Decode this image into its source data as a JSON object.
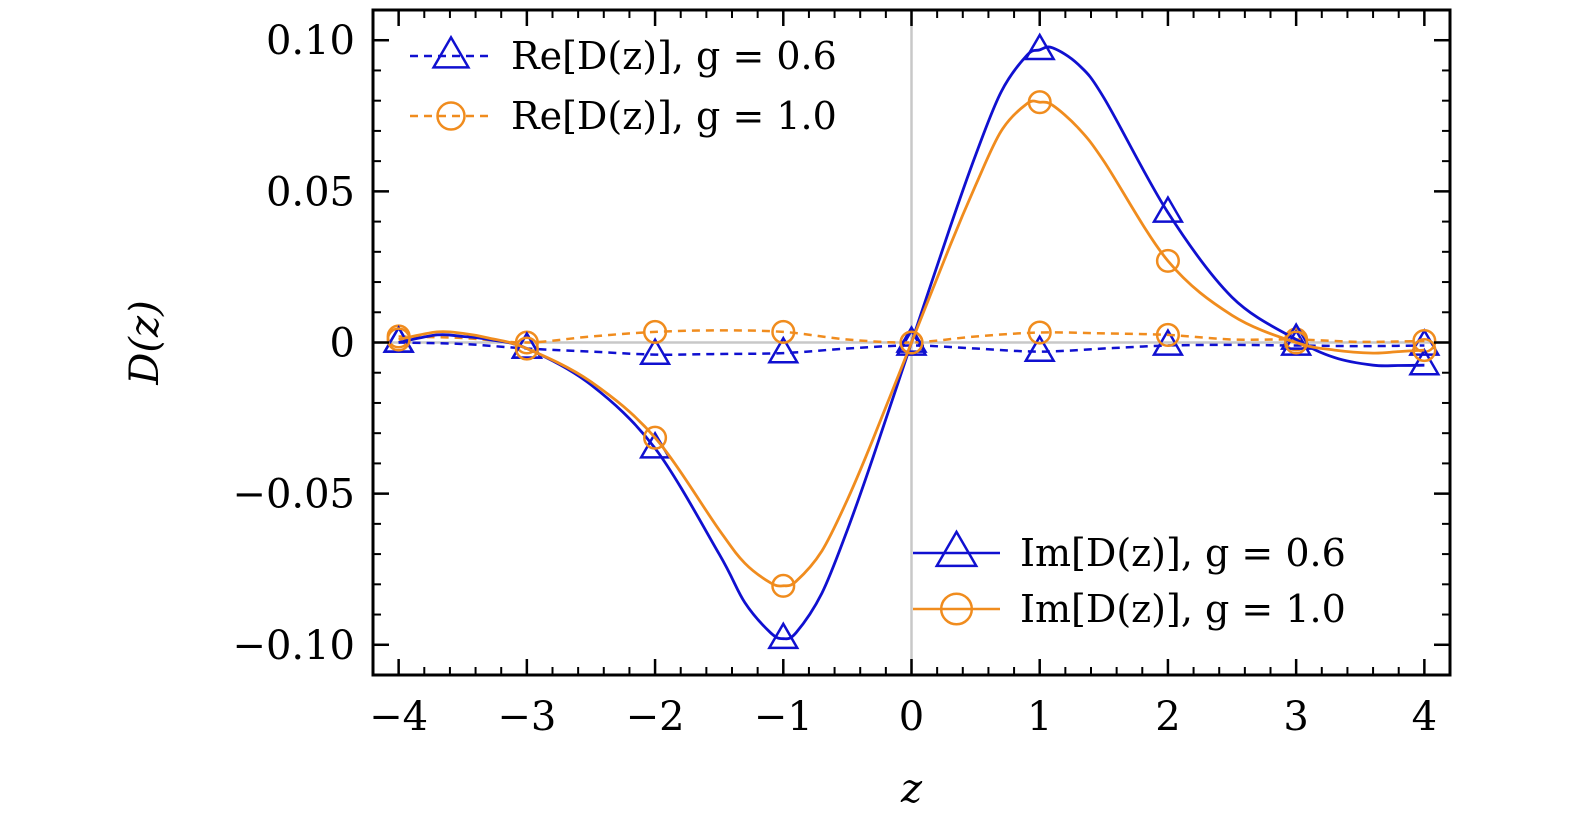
{
  "chart_data": {
    "type": "line",
    "xlabel": "z",
    "ylabel": "D(z)",
    "xlim": [
      -4.2,
      4.2
    ],
    "ylim": [
      -0.11,
      0.11
    ],
    "xticks": [
      -4,
      -3,
      -2,
      -1,
      0,
      1,
      2,
      3,
      4
    ],
    "xtick_labels": [
      "−4",
      "−3",
      "−2",
      "−1",
      "0",
      "1",
      "2",
      "3",
      "4"
    ],
    "yticks": [
      0.1,
      0.05,
      0,
      -0.05,
      -0.1
    ],
    "ytick_labels": [
      "0.10",
      "0.05",
      "0",
      "−0.05",
      "−0.10"
    ],
    "grid": false,
    "zero_lines": true,
    "series": [
      {
        "name": "Re[D(z)], g = 0.6",
        "style": "dashed",
        "marker": "triangle",
        "color": "#1010d0",
        "x": [
          -4,
          -3.5,
          -3,
          -2.5,
          -2,
          -1.5,
          -1,
          -0.5,
          0,
          0.5,
          1,
          1.5,
          2,
          2.5,
          3,
          3.5,
          4
        ],
        "y": [
          0.0,
          -0.0005,
          -0.002,
          -0.003,
          -0.004,
          -0.0038,
          -0.0035,
          -0.002,
          -0.001,
          -0.002,
          -0.003,
          -0.002,
          -0.001,
          -0.0008,
          -0.001,
          -0.0012,
          -0.001
        ]
      },
      {
        "name": "Re[D(z)], g = 1.0",
        "style": "dashed",
        "marker": "circle",
        "color": "#f08c1e",
        "x": [
          -4,
          -3.5,
          -3,
          -2.5,
          -2,
          -1.5,
          -1,
          -0.5,
          0,
          0.5,
          1,
          1.5,
          2,
          2.5,
          3,
          3.5,
          4
        ],
        "y": [
          0.002,
          0.0015,
          0.0,
          0.002,
          0.0035,
          0.004,
          0.0035,
          0.001,
          0.0,
          0.002,
          0.0033,
          0.003,
          0.0025,
          0.001,
          0.001,
          0.0002,
          0.0005
        ]
      },
      {
        "name": "Im[D(z)], g = 0.6",
        "style": "solid",
        "marker": "triangle",
        "color": "#1010d0",
        "x": [
          -4,
          -3.7,
          -3.5,
          -3.3,
          -3,
          -2.5,
          -2,
          -1.5,
          -1.3,
          -1.1,
          -1,
          -0.9,
          -0.7,
          -0.5,
          -0.3,
          0,
          0.3,
          0.5,
          0.7,
          0.9,
          1,
          1.1,
          1.3,
          1.5,
          2,
          2.5,
          3,
          3.3,
          3.6,
          3.8,
          4
        ],
        "y": [
          0.0,
          0.0025,
          0.002,
          0.001,
          -0.002,
          -0.014,
          -0.035,
          -0.07,
          -0.086,
          -0.096,
          -0.098,
          -0.096,
          -0.083,
          -0.062,
          -0.038,
          0.0,
          0.038,
          0.062,
          0.083,
          0.095,
          0.0968,
          0.0975,
          0.092,
          0.081,
          0.043,
          0.015,
          0.001,
          -0.005,
          -0.0075,
          -0.0076,
          -0.0075
        ]
      },
      {
        "name": "Im[D(z)], g = 1.0",
        "style": "solid",
        "marker": "circle",
        "color": "#f08c1e",
        "x": [
          -4,
          -3.7,
          -3.5,
          -3.3,
          -3,
          -2.5,
          -2,
          -1.5,
          -1.3,
          -1.1,
          -1,
          -0.9,
          -0.7,
          -0.5,
          -0.3,
          0,
          0.3,
          0.5,
          0.7,
          0.9,
          1,
          1.1,
          1.3,
          1.5,
          2,
          2.5,
          3,
          3.3,
          3.6,
          3.8,
          4
        ],
        "y": [
          0.001,
          0.0035,
          0.003,
          0.0015,
          -0.002,
          -0.013,
          -0.0315,
          -0.062,
          -0.073,
          -0.0795,
          -0.0805,
          -0.079,
          -0.069,
          -0.052,
          -0.032,
          0.0,
          0.032,
          0.052,
          0.07,
          0.079,
          0.0795,
          0.0785,
          0.071,
          0.06,
          0.027,
          0.009,
          0.0,
          -0.0025,
          -0.0035,
          -0.003,
          -0.0025
        ]
      }
    ],
    "legends": [
      {
        "placement": "top-left",
        "entries": [
          0,
          1
        ]
      },
      {
        "placement": "bottom-right",
        "entries": [
          2,
          3
        ]
      }
    ]
  }
}
